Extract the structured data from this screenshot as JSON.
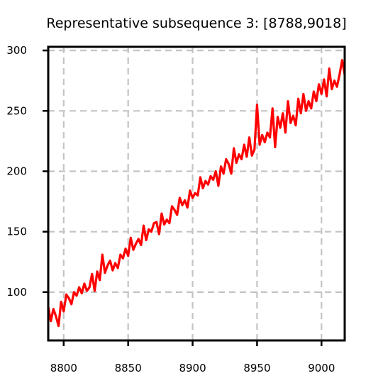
{
  "chart_data": {
    "type": "line",
    "title": "Representative subsequence 3: [8788,9018]",
    "xlabel": "",
    "ylabel": "",
    "xlim": [
      8788,
      9018
    ],
    "ylim": [
      60,
      303
    ],
    "x_ticks": [
      8800,
      8850,
      8900,
      8950,
      9000
    ],
    "y_ticks": [
      100,
      150,
      200,
      250,
      300
    ],
    "grid": true,
    "series": [
      {
        "color": "#ff0000",
        "x": [
          8788,
          8790,
          8792,
          8794,
          8796,
          8798,
          8800,
          8802,
          8804,
          8806,
          8808,
          8810,
          8812,
          8814,
          8816,
          8818,
          8820,
          8822,
          8824,
          8826,
          8828,
          8830,
          8832,
          8834,
          8836,
          8838,
          8840,
          8842,
          8844,
          8846,
          8848,
          8850,
          8852,
          8854,
          8856,
          8858,
          8860,
          8862,
          8864,
          8866,
          8868,
          8870,
          8872,
          8874,
          8876,
          8878,
          8880,
          8882,
          8884,
          8886,
          8888,
          8890,
          8892,
          8894,
          8896,
          8898,
          8900,
          8902,
          8904,
          8906,
          8908,
          8910,
          8912,
          8914,
          8916,
          8918,
          8920,
          8922,
          8924,
          8926,
          8928,
          8930,
          8932,
          8934,
          8936,
          8938,
          8940,
          8942,
          8944,
          8946,
          8948,
          8950,
          8952,
          8954,
          8956,
          8958,
          8960,
          8962,
          8964,
          8966,
          8968,
          8970,
          8972,
          8974,
          8976,
          8978,
          8980,
          8982,
          8984,
          8986,
          8988,
          8990,
          8992,
          8994,
          8996,
          8998,
          9000,
          9002,
          9004,
          9006,
          9008,
          9010,
          9012,
          9014,
          9016,
          9018
        ],
        "y": [
          88,
          76,
          86,
          80,
          72,
          92,
          84,
          98,
          95,
          90,
          100,
          97,
          104,
          99,
          107,
          101,
          104,
          115,
          101,
          117,
          110,
          131,
          116,
          122,
          126,
          118,
          124,
          120,
          131,
          128,
          136,
          130,
          145,
          135,
          140,
          144,
          139,
          155,
          143,
          152,
          150,
          157,
          158,
          148,
          165,
          156,
          160,
          157,
          171,
          168,
          164,
          178,
          172,
          176,
          170,
          184,
          178,
          182,
          180,
          195,
          186,
          192,
          189,
          196,
          193,
          200,
          188,
          204,
          198,
          210,
          206,
          198,
          219,
          207,
          214,
          210,
          222,
          212,
          228,
          213,
          218,
          255,
          222,
          230,
          224,
          232,
          228,
          252,
          220,
          245,
          236,
          248,
          232,
          258,
          240,
          246,
          238,
          260,
          248,
          264,
          250,
          258,
          252,
          266,
          258,
          272,
          264,
          276,
          262,
          285,
          268,
          275,
          270,
          280,
          292,
          280
        ]
      }
    ]
  }
}
